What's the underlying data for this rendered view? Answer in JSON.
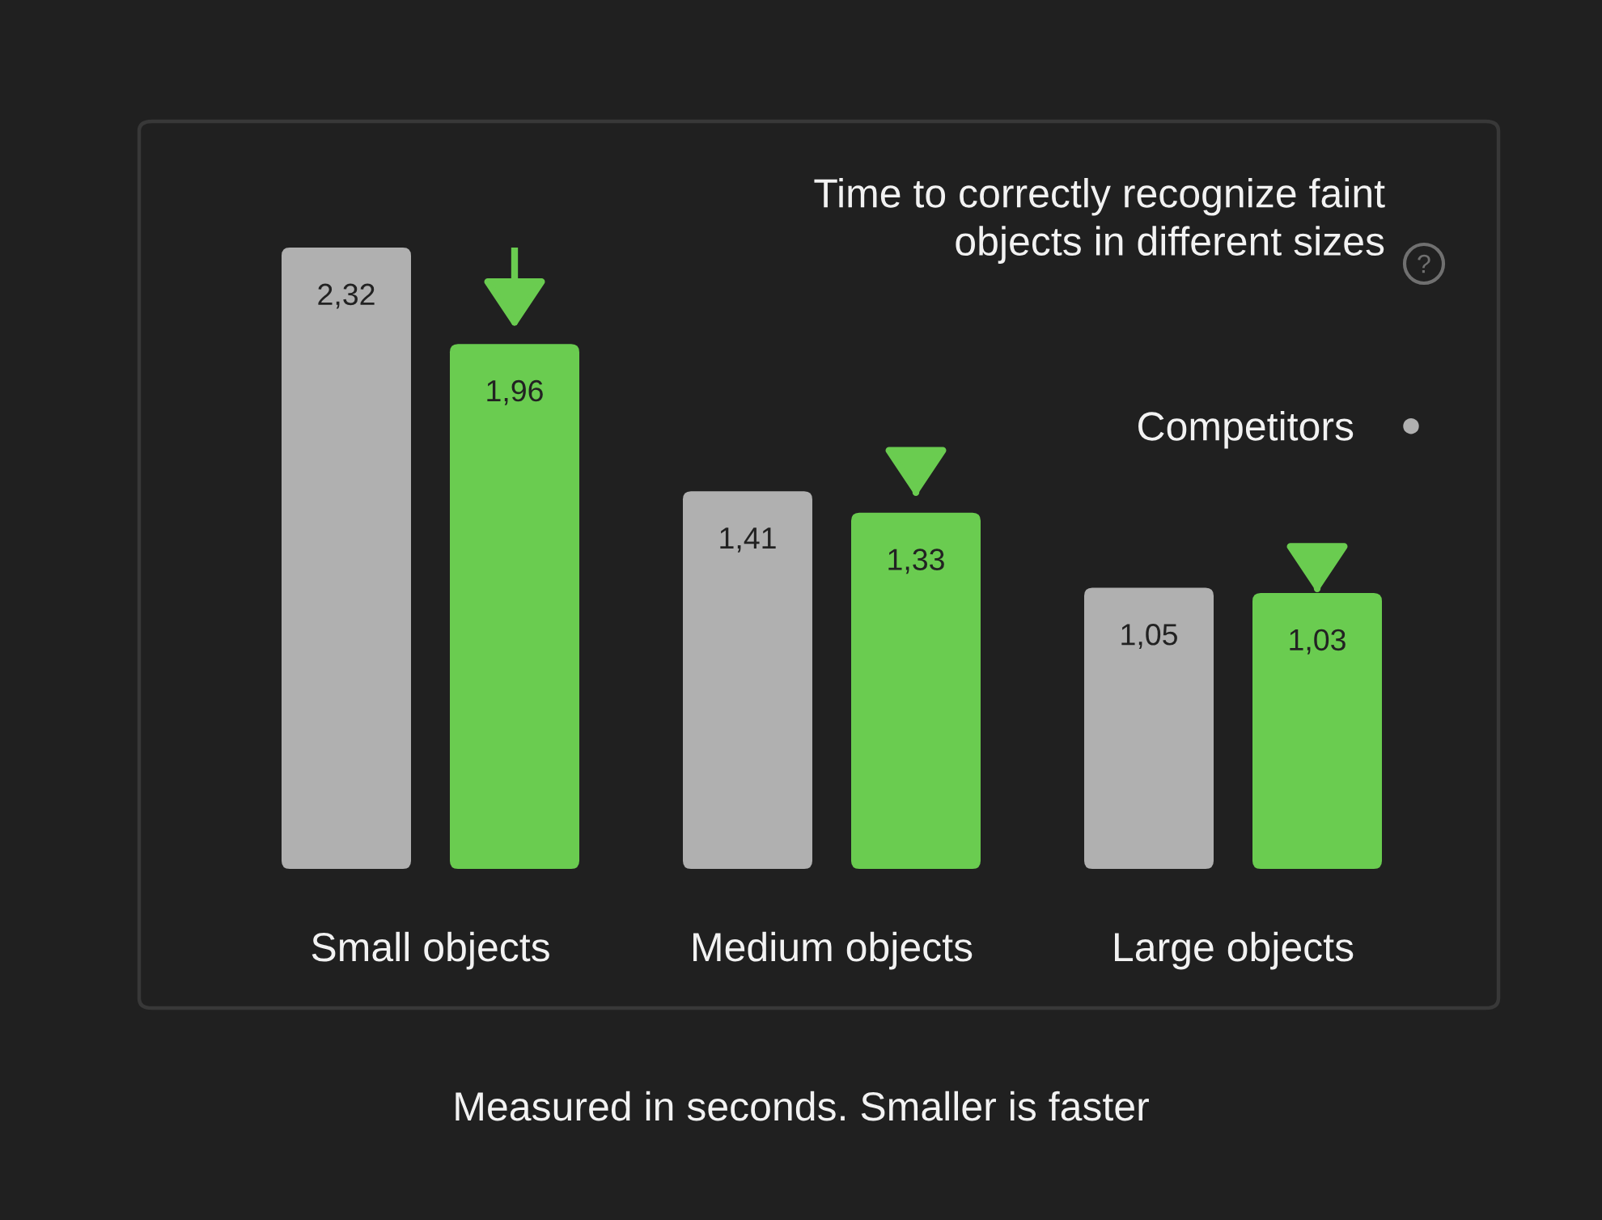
{
  "chart_data": {
    "type": "bar",
    "title": "Time to correctly recognize faint\nobjects in different sizes",
    "categories": [
      "Small objects",
      "Medium objects",
      "Large objects"
    ],
    "series": [
      {
        "name": "Competitors",
        "color": "#b0b0b0",
        "values": [
          2.32,
          1.41,
          1.05
        ],
        "value_labels": [
          "2,32",
          "1,41",
          "1,05"
        ]
      },
      {
        "color": "#6acc50",
        "values": [
          1.96,
          1.33,
          1.03
        ],
        "value_labels": [
          "1,96",
          "1,33",
          "1,03"
        ]
      }
    ],
    "annotations": [
      "Measured in seconds. Smaller is faster"
    ],
    "legend": "top right"
  }
}
